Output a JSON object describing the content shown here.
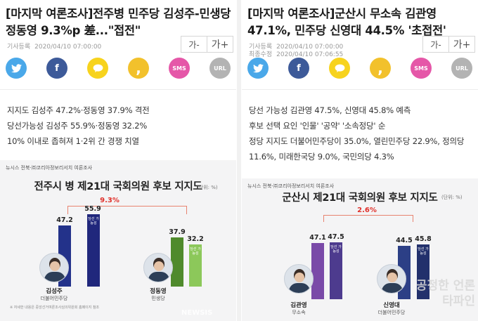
{
  "left": {
    "headline": "[마지막 여론조사]전주병 민주당 김성주-민생당 정동영 9.3%p 差...\"접전\"",
    "meta": [
      {
        "key": "기사등록",
        "value": "2020/04/10 07:00:00"
      }
    ],
    "font_buttons": [
      "가-",
      "가+"
    ],
    "share": [
      {
        "icon": "twitter-icon",
        "label": ""
      },
      {
        "icon": "facebook-icon",
        "label": "f"
      },
      {
        "icon": "kakaotalk-icon",
        "label": ""
      },
      {
        "icon": "kakaostory-icon",
        "label": ","
      },
      {
        "icon": "sms-icon",
        "label": "SMS"
      },
      {
        "icon": "url-icon",
        "label": "URL"
      }
    ],
    "summary": [
      "지지도 김성주 47.2%·정동영 37.9% 격전",
      "당선가능성 김성주 55.9%·정동영 32.2%",
      "10% 이내로 좁혀져 1·2위 간 경쟁 치열"
    ],
    "graphic": {
      "source": "뉴시스 전북·㈜코리아정보리서치 여론조사",
      "unit": "(단위: %)",
      "gap": "9.3%",
      "tag": "당선 가능성",
      "footnote": "※ 자세한 내용은 중앙선거여론조사심의위원회 홈페이지 참조",
      "watermark": "NEWSIS"
    },
    "chart_data": {
      "type": "bar",
      "title": "전주시 병 제21대 국회의원 후보 지지도",
      "categories": [
        "김성주",
        "정동영"
      ],
      "parties": [
        "더불어민주당",
        "민생당"
      ],
      "series": [
        {
          "name": "지지도",
          "values": [
            47.2,
            37.9
          ]
        },
        {
          "name": "당선 가능성",
          "values": [
            55.9,
            32.2
          ]
        }
      ],
      "gap_label": "9.3%",
      "unit": "(단위: %)",
      "colors": {
        "first_support": "#23328a",
        "first_win": "#20277c",
        "second_support": "#4f8a2c",
        "second_win": "#8cc85a"
      }
    }
  },
  "right": {
    "headline": "[마지막 여론조사]군산시 무소속 김관영 47.1%, 민주당 신영대 44.5% '초접전'",
    "meta": [
      {
        "key": "기사등록",
        "value": "2020/04/10 07:00:00"
      },
      {
        "key": "최종수정",
        "value": "2020/04/10 07:06:55"
      }
    ],
    "font_buttons": [
      "가-",
      "가+"
    ],
    "share": [
      {
        "icon": "twitter-icon",
        "label": ""
      },
      {
        "icon": "facebook-icon",
        "label": "f"
      },
      {
        "icon": "kakaotalk-icon",
        "label": ""
      },
      {
        "icon": "kakaostory-icon",
        "label": ","
      },
      {
        "icon": "sms-icon",
        "label": "SMS"
      },
      {
        "icon": "url-icon",
        "label": "URL"
      }
    ],
    "summary": [
      "당선 가능성 김관영 47.5%, 신영대 45.8% 예측",
      "후보 선택 요인 '인물' '공약' '소속정당' 순",
      "정당 지지도 더불어민주당이 35.0%, 열린민주당 22.9%, 정의당 11.6%, 미래한국당 9.0%, 국민의당 4.3%"
    ],
    "graphic": {
      "source": "뉴시스 전북·㈜코리아정보리서치 여론조사",
      "unit": "(단위: %)",
      "gap": "2.6%",
      "tag": "당선 가능성",
      "watermark": "공정한 언론 타파인"
    },
    "chart_data": {
      "type": "bar",
      "title": "군산시 제21대 국회의원 후보 지지도",
      "categories": [
        "김관영",
        "신영대"
      ],
      "parties": [
        "무소속",
        "더불어민주당"
      ],
      "series": [
        {
          "name": "지지도",
          "values": [
            47.1,
            44.5
          ]
        },
        {
          "name": "당선 가능성",
          "values": [
            47.5,
            45.8
          ]
        }
      ],
      "gap_label": "2.6%",
      "unit": "(단위: %)",
      "colors": {
        "first_support": "#7a4aa8",
        "first_win": "#4d3b8e",
        "second_support": "#2c3f86",
        "second_win": "#22306c"
      }
    }
  }
}
